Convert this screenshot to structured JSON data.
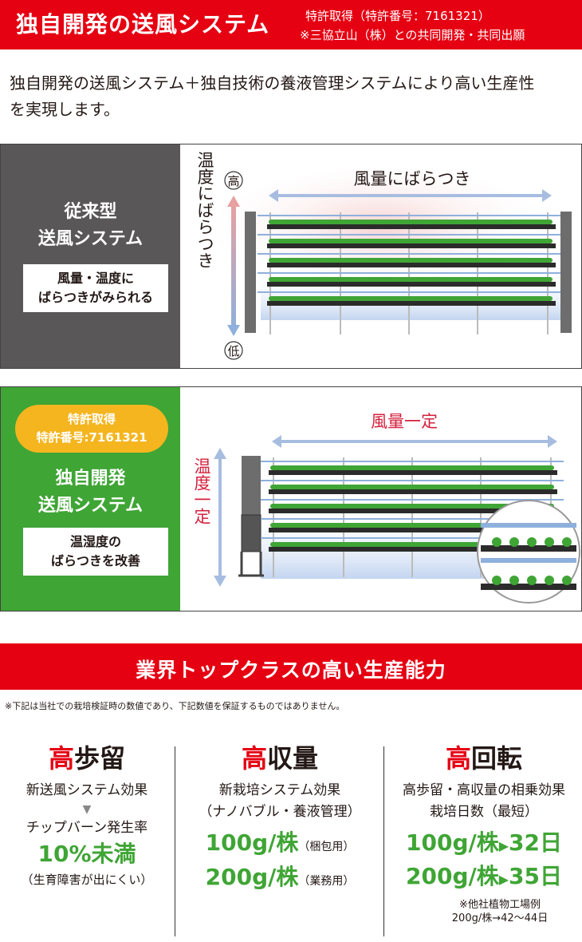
{
  "header": {
    "title": "独自開発の送風システム",
    "note_line1": "特許取得（特許番号：7161321）",
    "note_line2": "※三協立山（株）との共同開発・共同出願"
  },
  "intro": {
    "line1": "独自開発の送風システム＋独自技術の養液管理システムにより高い生産性",
    "line2": "を実現します。"
  },
  "conventional": {
    "title_line1": "従来型",
    "title_line2": "送風システム",
    "box_line1": "風量・温度に",
    "box_line2": "ばらつきがみられる",
    "diagram": {
      "high_label": "高",
      "low_label": "低",
      "vertical_label": "温度にばらつき",
      "horizontal_label": "風量にばらつき"
    }
  },
  "developed": {
    "badge_line1": "特許取得",
    "badge_line2": "特許番号:7161321",
    "title_line1": "独自開発",
    "title_line2": "送風システム",
    "box_line1": "温湿度の",
    "box_line2": "ばらつきを改善",
    "diagram": {
      "vertical_label": "温度一定",
      "horizontal_label": "風量一定"
    }
  },
  "productivity": {
    "title": "業界トップクラスの高い生産能力",
    "note": "※下記は当社での栽培検証時の数値であり、下記数値を保証するものではありません。",
    "columns": [
      {
        "head_red": "高",
        "head_rest": "歩留",
        "line1": "新送風システム効果",
        "arrow": "▼",
        "line2": "チップバーン発生率",
        "big": "10%未満",
        "sub": "（生育障害が出にくい）"
      },
      {
        "head_red": "高",
        "head_rest": "収量",
        "line1": "新栽培システム効果",
        "line2": "（ナノバブル・養液管理）",
        "value1": "100g/株",
        "value1_note": "（梱包用）",
        "value2": "200g/株",
        "value2_note": "（業務用）"
      },
      {
        "head_red": "高",
        "head_rest": "回転",
        "line1": "高歩留・高収量の相乗効果",
        "line2": "栽培日数（最短）",
        "value1": "100g/株",
        "days1": "32日",
        "value2": "200g/株",
        "days2": "35日",
        "foot1": "※他社植物工場例",
        "foot2": "200g/株→42〜44日"
      }
    ]
  },
  "colors": {
    "brand_red": "#e50012",
    "green": "#3fa535",
    "gray": "#595757",
    "badge_yellow": "#f5b51f"
  }
}
